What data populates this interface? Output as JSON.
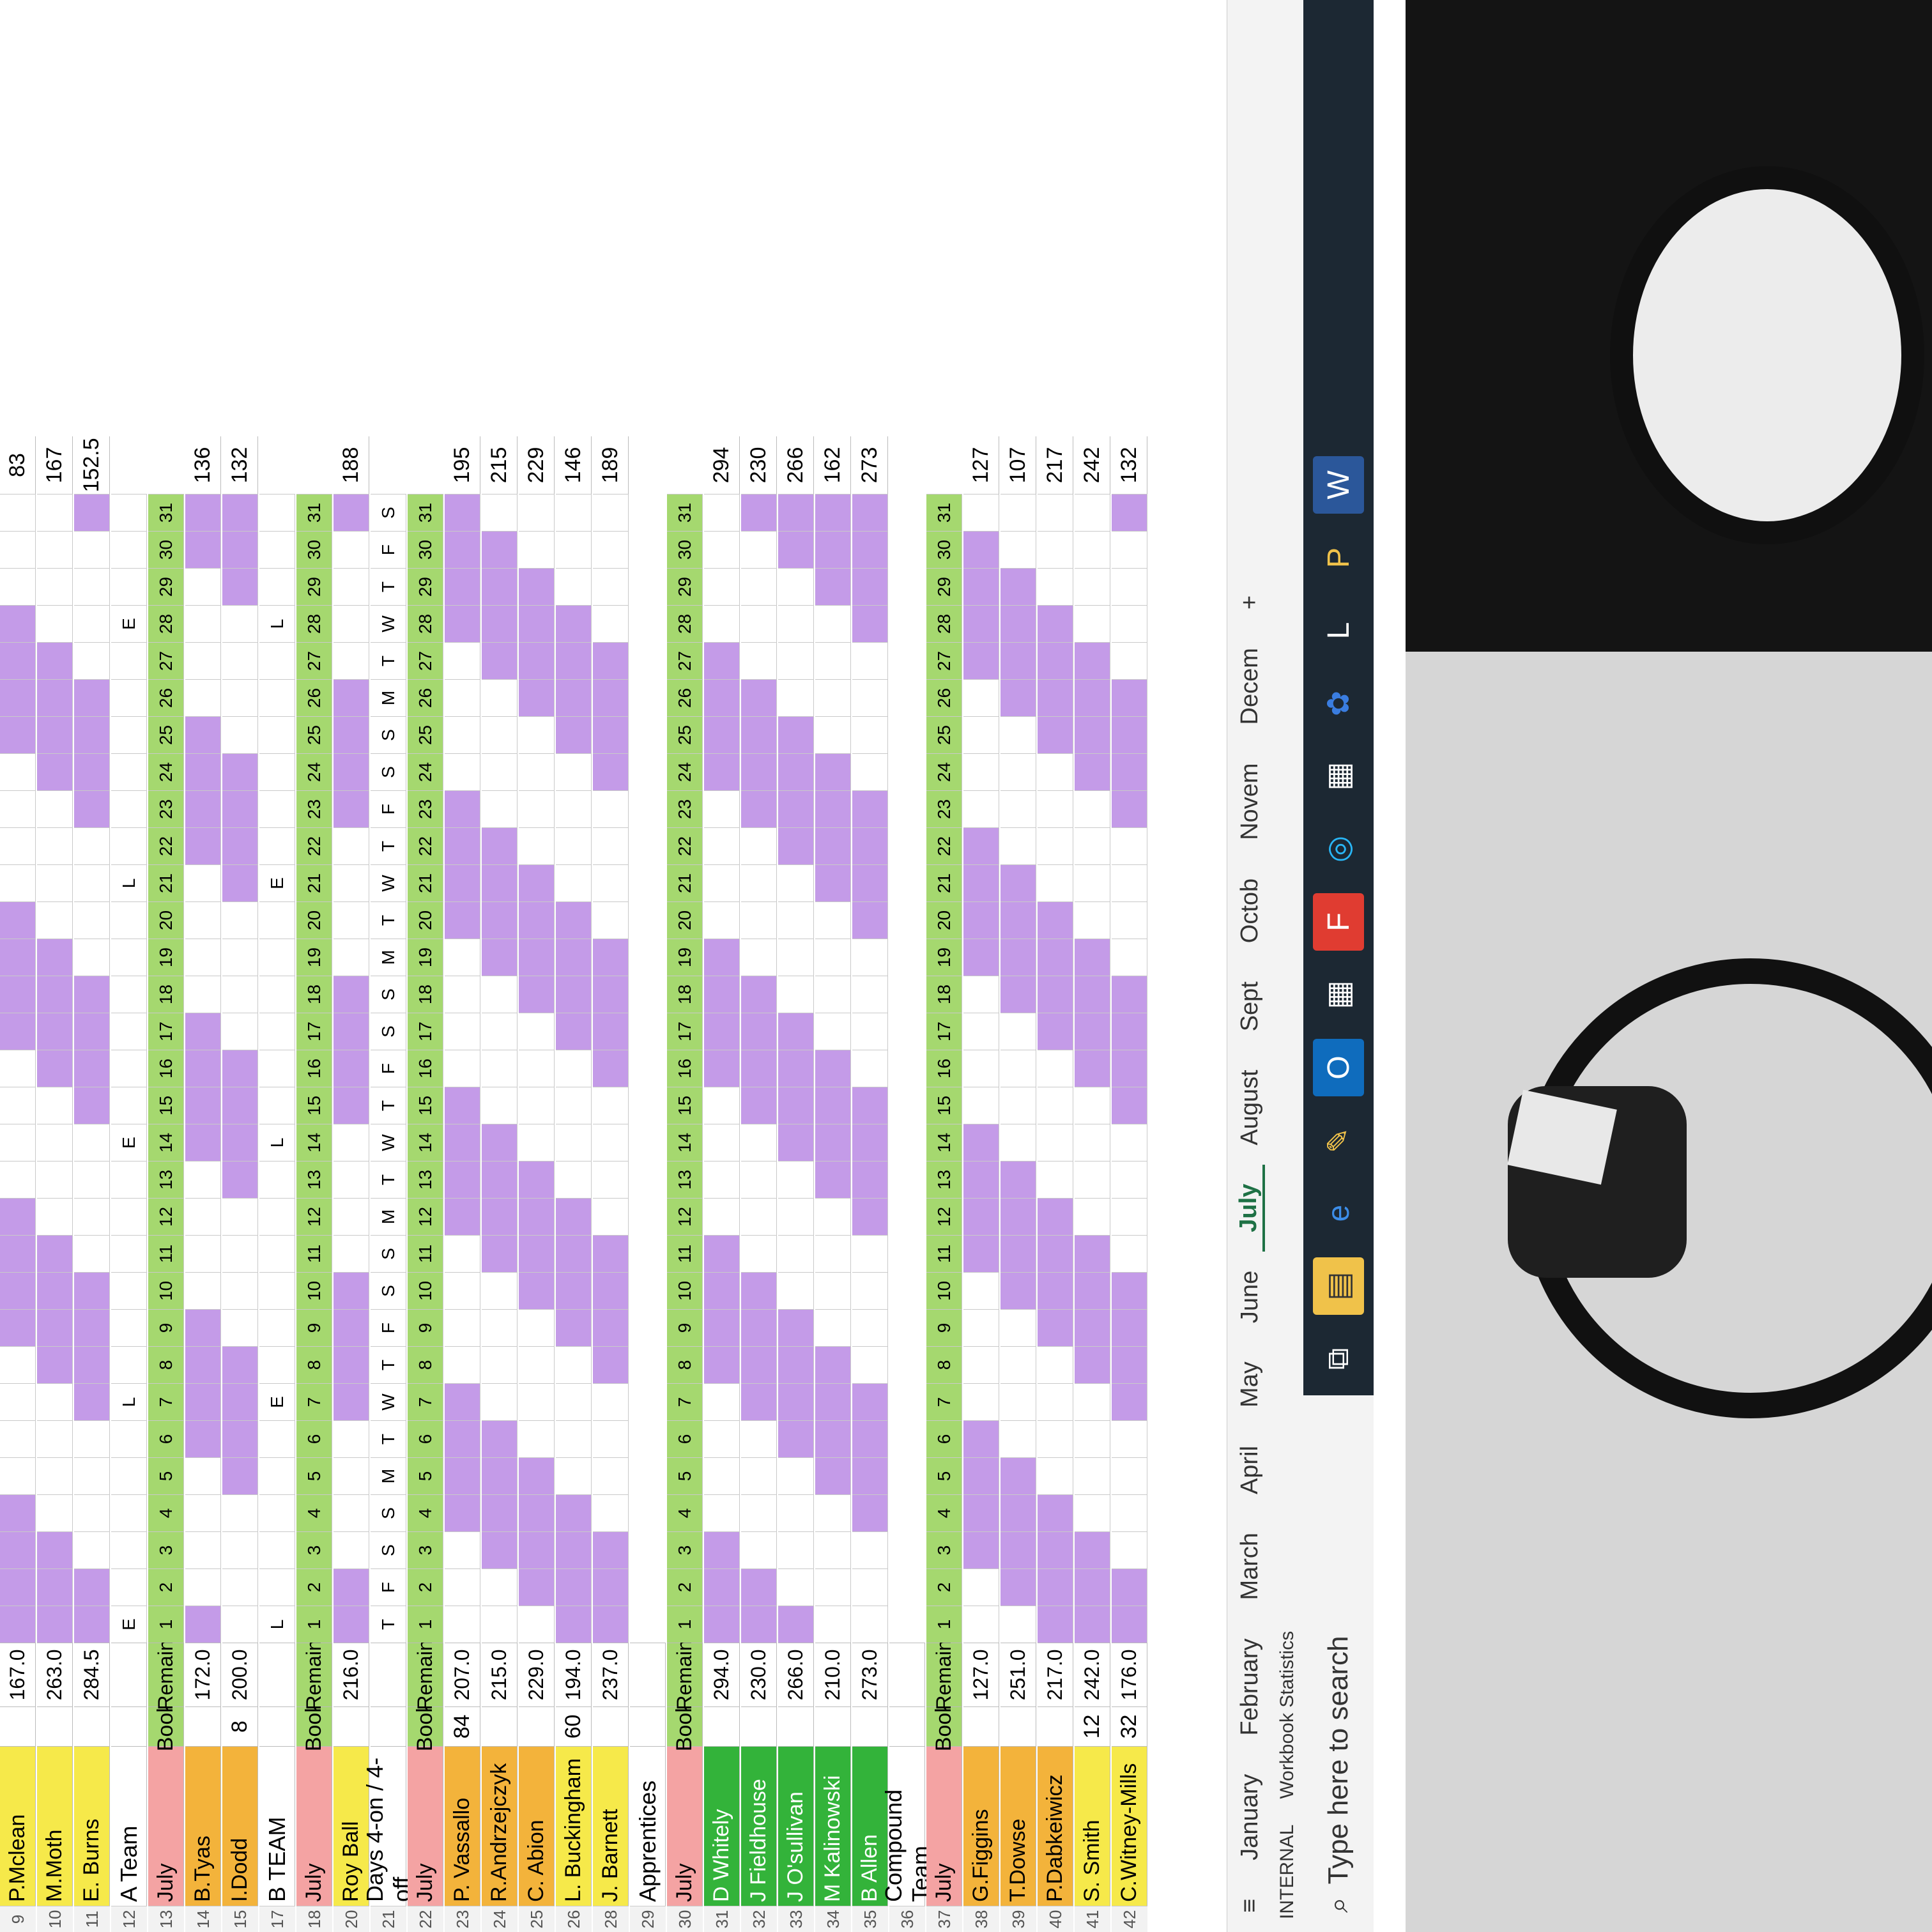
{
  "sheet": {
    "top_rows": [
      {
        "num": "9",
        "name": "P.Mclean",
        "remain": "167.0",
        "total": "83"
      },
      {
        "num": "10",
        "name": "M.Moth",
        "remain": "263.0",
        "total": "167"
      },
      {
        "num": "11",
        "name": "E. Burns",
        "remain": "284.5",
        "total": "152.5"
      }
    ],
    "a_team": {
      "title": "A Team",
      "shift_letters": [
        "E",
        "",
        "",
        "",
        "",
        "",
        "L",
        "",
        "",
        "",
        "",
        "",
        "",
        "E",
        "",
        "",
        "",
        "",
        "",
        "",
        "L",
        "",
        "",
        "",
        "",
        "",
        "",
        "E",
        "",
        "",
        ""
      ],
      "header": {
        "num": "13",
        "month": "July",
        "book": "Book",
        "remain": "Remain"
      },
      "rows": [
        {
          "num": "14",
          "name": "B.Tyas",
          "book": "",
          "remain": "172.0",
          "total": "136"
        },
        {
          "num": "15",
          "name": "I.Dodd",
          "book": "8",
          "remain": "200.0",
          "total": "132"
        }
      ]
    },
    "b_team": {
      "title": "B TEAM",
      "shift_letters": [
        "L",
        "",
        "",
        "",
        "",
        "",
        "E",
        "",
        "",
        "",
        "",
        "",
        "",
        "L",
        "",
        "",
        "",
        "",
        "",
        "",
        "E",
        "",
        "",
        "",
        "",
        "",
        "",
        "L",
        "",
        "",
        ""
      ],
      "header": {
        "num": "18",
        "month": "July",
        "book": "Book",
        "remain": "Remain"
      },
      "rows": [
        {
          "num": "20",
          "name": "Roy Ball",
          "book": "",
          "remain": "216.0",
          "total": "188"
        }
      ]
    },
    "days_team": {
      "title": "Days 4-on / 4-off",
      "weekdays": [
        "T",
        "F",
        "S",
        "S",
        "M",
        "T",
        "W",
        "T",
        "F",
        "S",
        "S",
        "M",
        "T",
        "W",
        "T",
        "F",
        "S",
        "S",
        "M",
        "T",
        "W",
        "T",
        "F",
        "S",
        "S",
        "M",
        "T",
        "W",
        "T",
        "F",
        "S"
      ],
      "header": {
        "num": "22",
        "month": "July",
        "book": "Book",
        "remain": "Remain"
      },
      "rows": [
        {
          "num": "23",
          "name": "P. Vassallo",
          "book": "84",
          "remain": "207.0",
          "total": "195"
        },
        {
          "num": "24",
          "name": "R.Andrzejczyk",
          "book": "",
          "remain": "215.0",
          "total": "215"
        },
        {
          "num": "25",
          "name": "C. Abion",
          "book": "",
          "remain": "229.0",
          "total": "229"
        },
        {
          "num": "26",
          "name": "L. Buckingham",
          "book": "60",
          "remain": "194.0",
          "total": "146"
        },
        {
          "num": "28",
          "name": "J. Barnett",
          "book": "",
          "remain": "237.0",
          "total": "189"
        }
      ]
    },
    "apprentices": {
      "title": "Apprentices",
      "header": {
        "num": "30",
        "month": "July",
        "book": "Book",
        "remain": "Remain"
      },
      "rows": [
        {
          "num": "31",
          "name": "D Whitely",
          "book": "",
          "remain": "294.0",
          "total": "294"
        },
        {
          "num": "32",
          "name": "J Fieldhouse",
          "book": "",
          "remain": "230.0",
          "total": "230"
        },
        {
          "num": "33",
          "name": "J O'sullivan",
          "book": "",
          "remain": "266.0",
          "total": "266"
        },
        {
          "num": "34",
          "name": "M Kalinowski",
          "book": "",
          "remain": "210.0",
          "total": "162"
        },
        {
          "num": "35",
          "name": "B Allen",
          "book": "",
          "remain": "273.0",
          "total": "273"
        }
      ]
    },
    "compound": {
      "title": "Compound Team",
      "header": {
        "num": "37",
        "month": "July",
        "book": "Book",
        "remain": "Remain"
      },
      "rows": [
        {
          "num": "38",
          "name": "G.Figgins",
          "book": "",
          "remain": "127.0",
          "total": "127"
        },
        {
          "num": "39",
          "name": "T.Dowse",
          "book": "",
          "remain": "251.0",
          "total": "107"
        },
        {
          "num": "40",
          "name": "P.Dabkeiwicz",
          "book": "",
          "remain": "217.0",
          "total": "217"
        },
        {
          "num": "41",
          "name": "S. Smith",
          "book": "12",
          "remain": "242.0",
          "total": "242"
        },
        {
          "num": "42",
          "name": "C.Witney-Mills",
          "book": "32",
          "remain": "176.0",
          "total": "132"
        }
      ]
    },
    "day_numbers": [
      "1",
      "2",
      "3",
      "4",
      "5",
      "6",
      "7",
      "8",
      "9",
      "10",
      "11",
      "12",
      "13",
      "14",
      "15",
      "16",
      "17",
      "18",
      "19",
      "20",
      "21",
      "22",
      "23",
      "24",
      "25",
      "26",
      "27",
      "28",
      "29",
      "30",
      "31"
    ]
  },
  "tabs": [
    "January",
    "February",
    "March",
    "April",
    "May",
    "June",
    "July",
    "August",
    "Sept",
    "Octob",
    "Novem",
    "Decem"
  ],
  "active_tab": "July",
  "status": {
    "label": "INTERNAL",
    "workbook_stats": "Workbook Statistics"
  },
  "taskbar": {
    "search_placeholder": "Type here to search"
  },
  "colors": {
    "purple": "#c49be8",
    "blue": "#1a73e8",
    "green_header": "#a5d86f",
    "salmon": "#f4a3a3",
    "yellow": "#f6e94a",
    "orange": "#f3b33b",
    "green_name": "#33b33a"
  }
}
